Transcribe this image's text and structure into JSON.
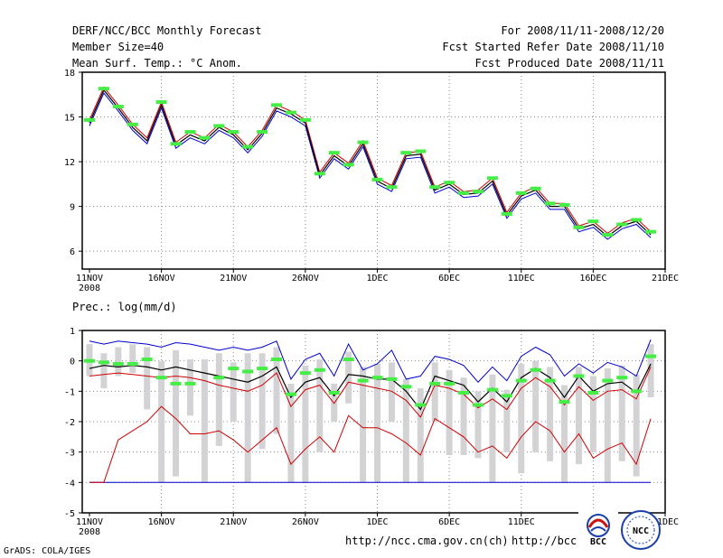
{
  "header": {
    "title": "DERF/NCC/BCC Monthly Forecast",
    "member_size": "Member Size=40",
    "variable": "Mean Surf. Temp.: °C Anom.",
    "period": "For 2008/11/11-2008/12/20",
    "start_date": "Fcst Started Refer Date 2008/11/10",
    "produced_date": "Fcst Produced Date 2008/11/11"
  },
  "footer": {
    "grads_credit": "GrADS: COLA/IGES",
    "url_ncc": "http://ncc.cma.gov.cn(ch)",
    "url_bcc": "http://bcc.",
    "logo_bcc_text": "BCC",
    "logo_ncc_text": "NCC"
  },
  "colors": {
    "ensemble_mean": "#000000",
    "upper_line": "#0000cc",
    "lower_line": "#cc0000",
    "observed_bar": "#44ee44",
    "spread_bar": "#d3d3d6",
    "threshold_line": "#0000cc"
  },
  "x_axis": {
    "tick_labels": [
      "11NOV",
      "16NOV",
      "21NOV",
      "26NOV",
      "1DEC",
      "6DEC",
      "11DEC",
      "16DEC",
      "21DEC"
    ],
    "year_label": "2008"
  },
  "chart_data": [
    {
      "type": "line",
      "title": "Mean Surf. Temp.: °C Anom.",
      "ylabel": "",
      "ylim": [
        4.8,
        18
      ],
      "yticks": [
        6,
        9,
        12,
        15,
        18
      ],
      "grid": true,
      "days": 40,
      "series": [
        {
          "name": "ensemble-mean",
          "color": "#000000",
          "values": [
            14.6,
            16.8,
            15.6,
            14.3,
            13.4,
            15.8,
            13.1,
            13.8,
            13.4,
            14.3,
            13.8,
            12.8,
            13.9,
            15.6,
            15.2,
            14.6,
            11.1,
            12.4,
            11.7,
            13.2,
            10.7,
            10.2,
            12.4,
            12.5,
            10.1,
            10.5,
            9.8,
            9.9,
            10.7,
            8.4,
            9.7,
            10.1,
            9.0,
            9.0,
            7.5,
            7.8,
            7.0,
            7.7,
            8.0,
            7.1
          ]
        },
        {
          "name": "ensemble-upper",
          "color": "#cc0000",
          "values": [
            14.8,
            17.0,
            15.8,
            14.5,
            13.6,
            16.0,
            13.3,
            14.0,
            13.6,
            14.5,
            14.0,
            13.0,
            14.1,
            15.8,
            15.4,
            14.8,
            11.3,
            12.6,
            11.9,
            13.4,
            10.9,
            10.4,
            12.6,
            12.7,
            10.3,
            10.7,
            10.0,
            10.1,
            10.9,
            8.6,
            9.9,
            10.3,
            9.2,
            9.2,
            7.7,
            8.0,
            7.2,
            7.9,
            8.2,
            7.3
          ]
        },
        {
          "name": "ensemble-lower",
          "color": "#0000cc",
          "values": [
            14.4,
            16.6,
            15.4,
            14.1,
            13.2,
            15.6,
            12.9,
            13.6,
            13.2,
            14.1,
            13.6,
            12.6,
            13.7,
            15.4,
            15.0,
            14.4,
            10.9,
            12.2,
            11.5,
            13.0,
            10.5,
            10.0,
            12.2,
            12.3,
            9.9,
            10.3,
            9.6,
            9.7,
            10.5,
            8.2,
            9.5,
            9.9,
            8.8,
            8.8,
            7.3,
            7.6,
            6.8,
            7.5,
            7.8,
            6.9
          ]
        },
        {
          "name": "observed-bars",
          "color": "#44ee44",
          "values": [
            14.8,
            16.9,
            15.7,
            14.5,
            null,
            16.0,
            13.2,
            14.0,
            13.6,
            14.4,
            14.0,
            13.0,
            14.0,
            15.8,
            15.3,
            14.8,
            11.2,
            12.6,
            11.8,
            13.3,
            10.8,
            10.3,
            12.6,
            12.7,
            10.3,
            10.6,
            9.9,
            10.0,
            10.9,
            8.5,
            9.9,
            10.2,
            9.2,
            9.1,
            7.6,
            8.0,
            7.1,
            7.8,
            8.1,
            7.3
          ]
        }
      ]
    },
    {
      "type": "line",
      "title": "Prec.: log(mm/d)",
      "ylabel": "",
      "ylim": [
        -5,
        1
      ],
      "yticks": [
        -5,
        -4,
        -3,
        -2,
        -1,
        0,
        1
      ],
      "grid": true,
      "days": 40,
      "series": [
        {
          "name": "ensemble-max",
          "color": "#0000cc",
          "values": [
            0.65,
            0.55,
            0.65,
            0.6,
            0.55,
            0.45,
            0.6,
            0.55,
            0.45,
            0.35,
            0.45,
            0.35,
            0.45,
            0.65,
            -0.6,
            0.05,
            0.25,
            -0.5,
            0.55,
            -0.3,
            -0.1,
            0.35,
            -0.6,
            -0.5,
            0.15,
            0.05,
            -0.15,
            -0.7,
            -0.2,
            -0.65,
            0.15,
            0.45,
            0.2,
            -0.5,
            -0.1,
            -0.4,
            -0.05,
            -0.2,
            -0.5,
            0.7
          ]
        },
        {
          "name": "ensemble-mean",
          "color": "#000000",
          "values": [
            -0.25,
            -0.15,
            -0.2,
            -0.15,
            -0.2,
            -0.3,
            -0.2,
            -0.3,
            -0.4,
            -0.5,
            -0.6,
            -0.7,
            -0.5,
            -0.2,
            -1.2,
            -0.7,
            -0.55,
            -1.15,
            -0.45,
            -0.5,
            -0.6,
            -0.6,
            -1.0,
            -1.6,
            -0.5,
            -0.65,
            -0.8,
            -1.35,
            -0.9,
            -1.35,
            -0.55,
            -0.25,
            -0.55,
            -1.2,
            -0.5,
            -1.0,
            -0.75,
            -0.7,
            -1.05,
            -0.1
          ]
        },
        {
          "name": "ensemble-p10",
          "color": "#cc0000",
          "values": [
            -0.5,
            -0.45,
            -0.4,
            -0.45,
            -0.5,
            -0.55,
            -0.5,
            -0.55,
            -0.65,
            -0.8,
            -0.9,
            -1.0,
            -0.8,
            -0.4,
            -1.5,
            -0.95,
            -0.8,
            -1.4,
            -0.7,
            -0.8,
            -0.9,
            -1.0,
            -1.3,
            -1.85,
            -0.8,
            -0.9,
            -1.1,
            -1.55,
            -1.25,
            -1.6,
            -0.9,
            -0.55,
            -0.85,
            -1.45,
            -0.85,
            -1.3,
            -1.0,
            -0.95,
            -1.25,
            -0.2
          ]
        },
        {
          "name": "ensemble-min",
          "color": "#cc0000",
          "values": [
            -4.0,
            -4.0,
            -2.6,
            -2.3,
            -2.0,
            -1.5,
            -1.9,
            -2.4,
            -2.4,
            -2.3,
            -2.6,
            -3.0,
            -2.6,
            -2.2,
            -3.4,
            -2.9,
            -2.5,
            -3.0,
            -1.8,
            -2.2,
            -2.2,
            -2.4,
            -2.7,
            -3.1,
            -1.9,
            -2.2,
            -2.5,
            -3.0,
            -2.8,
            -3.2,
            -2.5,
            -2.0,
            -2.3,
            -3.0,
            -2.4,
            -3.2,
            -2.9,
            -2.7,
            -3.4,
            -1.9
          ]
        },
        {
          "name": "spread-top",
          "color": "#d3d3d6",
          "values": [
            0.55,
            0.25,
            0.45,
            0.55,
            0.45,
            0.0,
            0.35,
            0.05,
            0.05,
            0.25,
            -0.05,
            0.25,
            0.25,
            0.45,
            -0.75,
            -0.15,
            0.05,
            -0.75,
            0.3,
            -0.2,
            -0.1,
            -0.05,
            -0.6,
            -0.9,
            -0.05,
            -0.3,
            -0.55,
            -1.0,
            -0.45,
            -0.95,
            -0.1,
            0.0,
            -0.2,
            -0.8,
            -0.2,
            -0.5,
            -0.25,
            -0.15,
            -0.45,
            0.55
          ]
        },
        {
          "name": "spread-bottom",
          "color": "#d3d3d6",
          "values": [
            -0.5,
            -0.9,
            -0.5,
            -0.4,
            -1.6,
            -4.0,
            -3.8,
            -1.8,
            -4.0,
            -2.8,
            -2.0,
            -4.0,
            -2.9,
            -2.4,
            -4.0,
            -4.0,
            -3.0,
            -2.0,
            -1.4,
            -4.0,
            -4.0,
            -2.0,
            -4.0,
            -4.0,
            -2.0,
            -3.1,
            -3.1,
            -3.2,
            -4.0,
            -3.0,
            -3.7,
            -3.0,
            -3.3,
            -4.0,
            -3.4,
            -3.0,
            -4.0,
            -3.3,
            -3.8,
            -1.2
          ]
        },
        {
          "name": "observed-bars",
          "color": "#44ee44",
          "values": [
            0.0,
            -0.05,
            -0.1,
            -0.1,
            0.05,
            -0.55,
            -0.75,
            -0.75,
            null,
            -0.55,
            -0.25,
            -0.35,
            -0.25,
            0.05,
            -1.1,
            -0.4,
            -0.3,
            -1.05,
            0.05,
            -0.65,
            -0.55,
            -0.6,
            -0.85,
            -1.45,
            -0.75,
            -0.75,
            -1.05,
            -1.45,
            -0.95,
            -1.15,
            -0.65,
            -0.3,
            -0.65,
            -1.35,
            -0.5,
            -1.05,
            -0.65,
            -0.55,
            -1.0,
            0.15
          ]
        },
        {
          "name": "threshold-line",
          "color": "#0000cc",
          "values": [
            -4.0,
            -4.0,
            -4.0,
            -4.0,
            -4.0,
            -4.0,
            -4.0,
            -4.0,
            -4.0,
            -4.0,
            -4.0,
            -4.0,
            -4.0,
            -4.0,
            -4.0,
            -4.0,
            -4.0,
            -4.0,
            -4.0,
            -4.0,
            -4.0,
            -4.0,
            -4.0,
            -4.0,
            -4.0,
            -4.0,
            -4.0,
            -4.0,
            -4.0,
            -4.0,
            -4.0,
            -4.0,
            -4.0,
            -4.0,
            -4.0,
            -4.0,
            -4.0,
            -4.0,
            -4.0,
            -4.0
          ]
        }
      ]
    }
  ]
}
